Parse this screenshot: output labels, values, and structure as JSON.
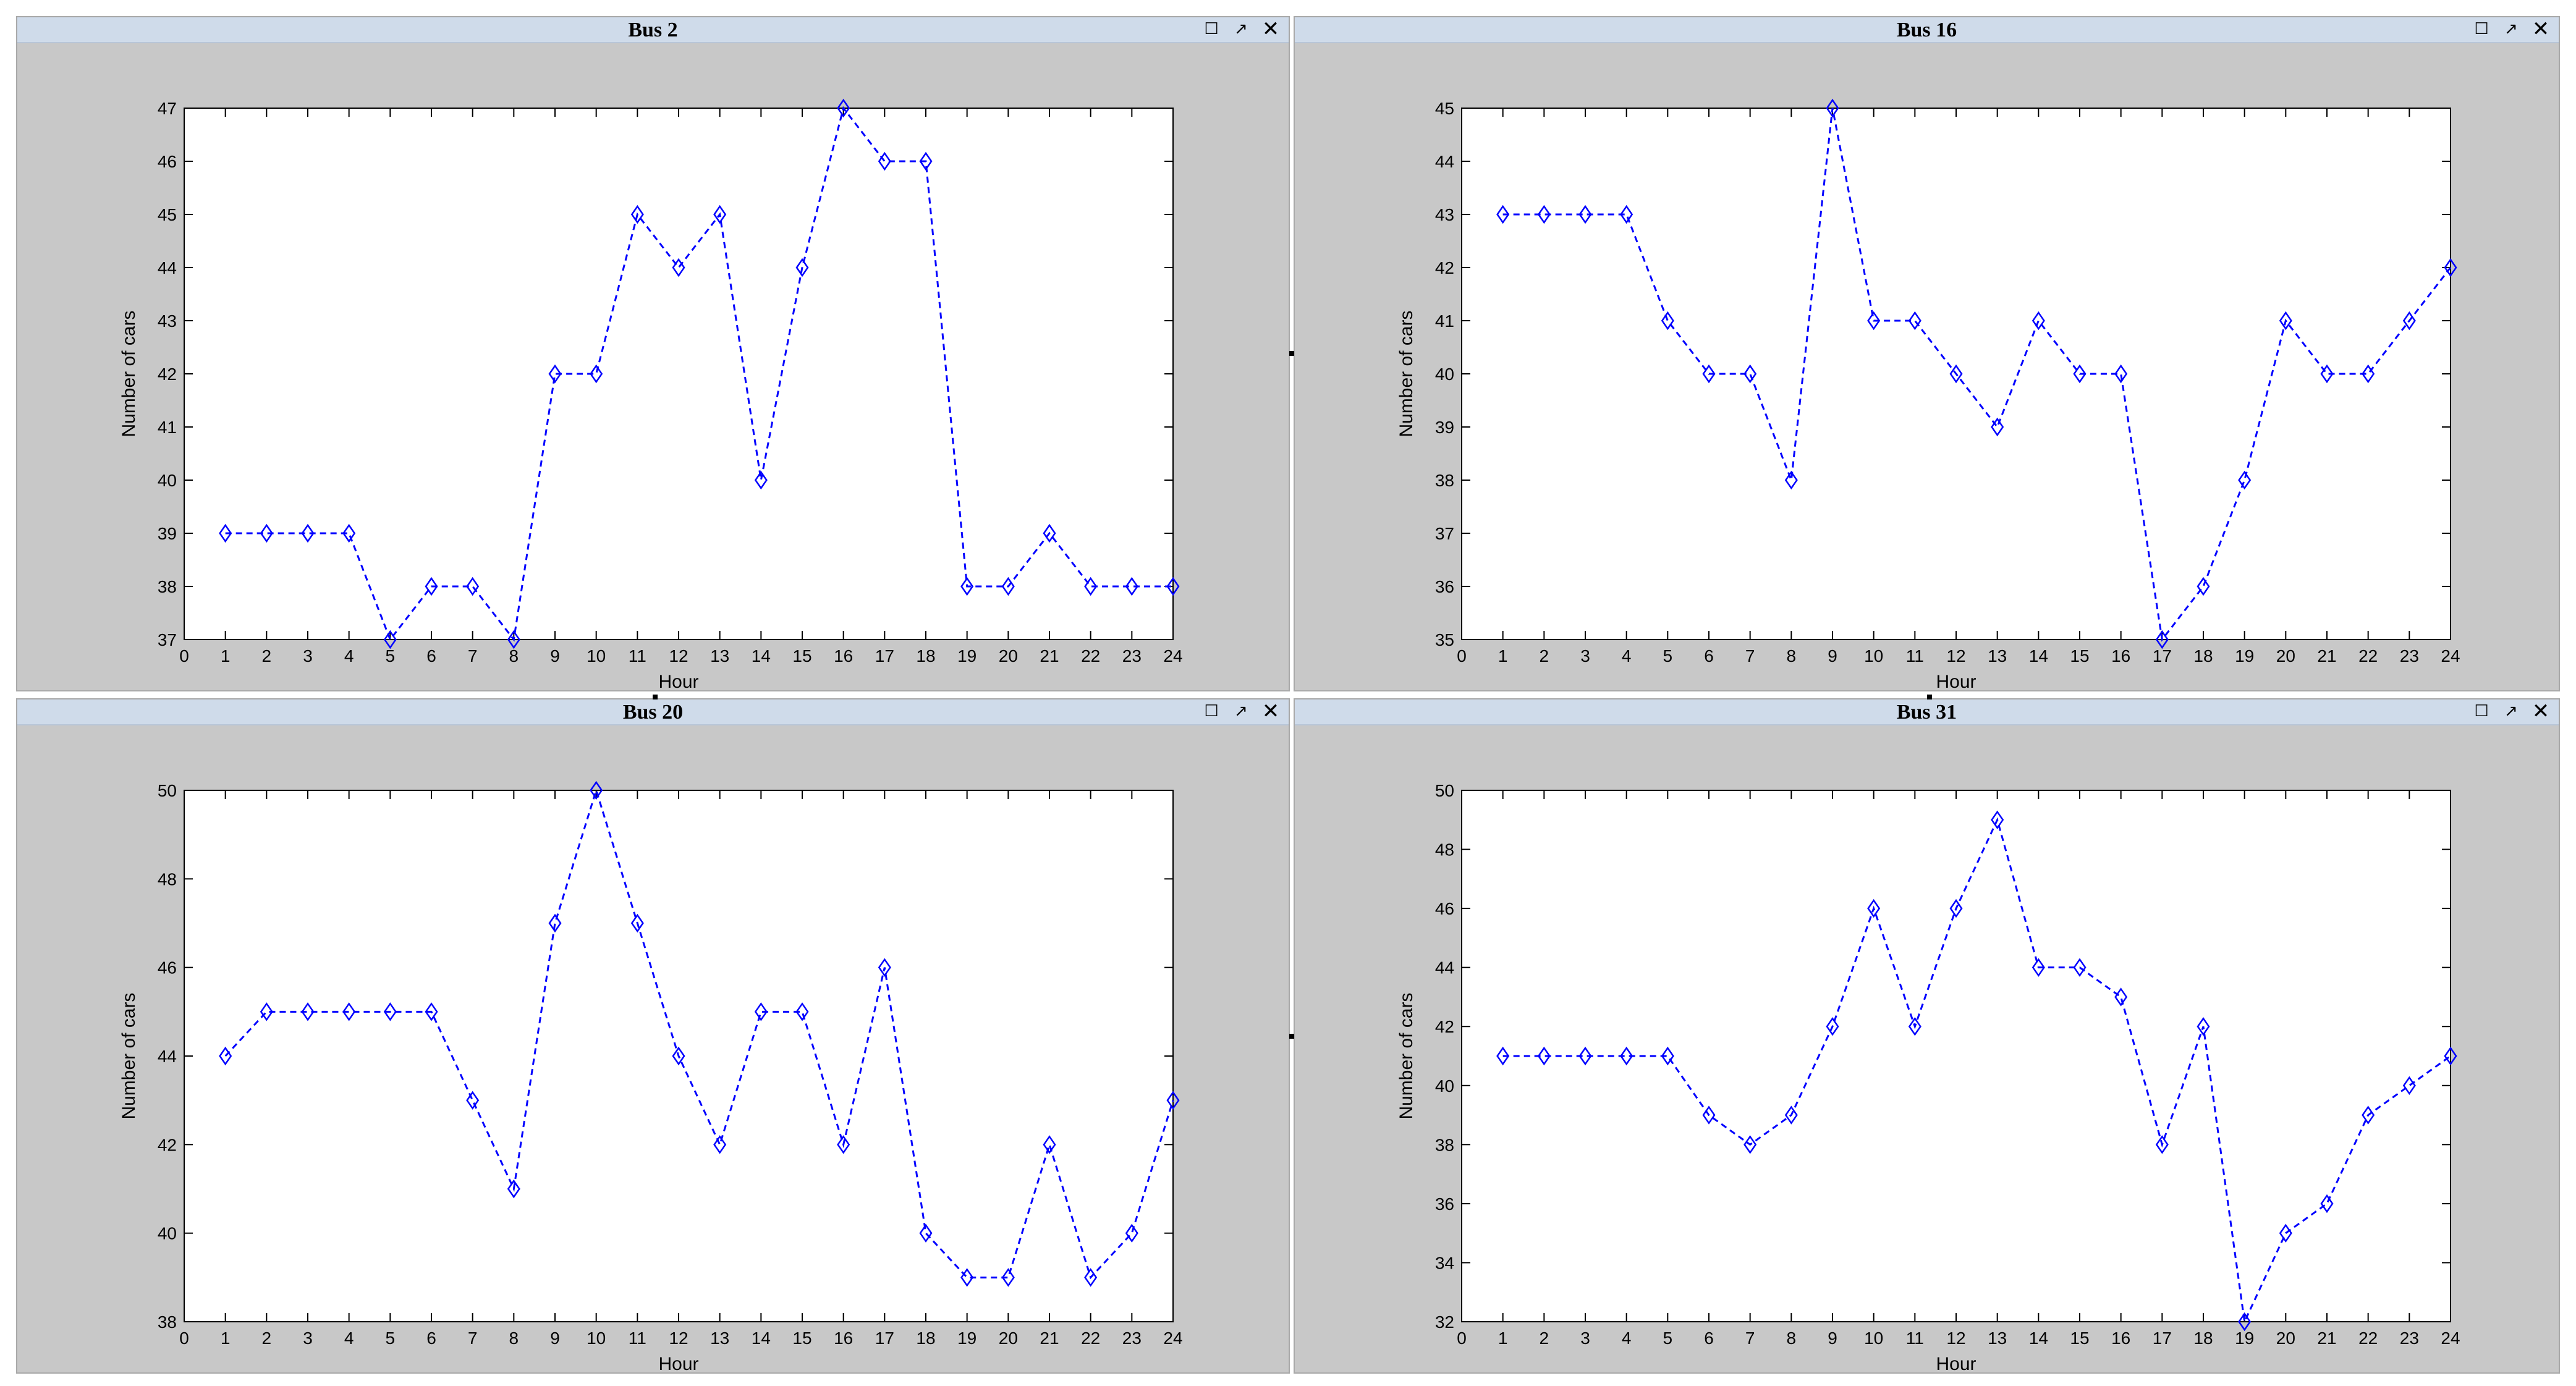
{
  "colors": {
    "series": "#0000ff",
    "frame": "#c8c8c8",
    "titlebar": "#cfdbea"
  },
  "window_controls": [
    {
      "name": "maximize-icon",
      "glyph": "☐"
    },
    {
      "name": "undock-icon",
      "glyph": "↗"
    },
    {
      "name": "close-icon",
      "glyph": "✕"
    }
  ],
  "chart_data": [
    {
      "type": "line",
      "title": "Bus 2",
      "xlabel": "Hour",
      "ylabel": "Number of cars",
      "x": [
        1,
        2,
        3,
        4,
        5,
        6,
        7,
        8,
        9,
        10,
        11,
        12,
        13,
        14,
        15,
        16,
        17,
        18,
        19,
        20,
        21,
        22,
        23,
        24
      ],
      "values": [
        39,
        39,
        39,
        39,
        37,
        38,
        38,
        37,
        42,
        42,
        45,
        44,
        45,
        40,
        44,
        47,
        46,
        46,
        38,
        38,
        39,
        38,
        38,
        38
      ],
      "xlim": [
        0,
        24
      ],
      "ylim": [
        37,
        47
      ],
      "xticks": [
        0,
        1,
        2,
        3,
        4,
        5,
        6,
        7,
        8,
        9,
        10,
        11,
        12,
        13,
        14,
        15,
        16,
        17,
        18,
        19,
        20,
        21,
        22,
        23,
        24
      ],
      "yticks": [
        37,
        38,
        39,
        40,
        41,
        42,
        43,
        44,
        45,
        46,
        47
      ],
      "marker": "diamond",
      "line_style": "dashed",
      "grid": false
    },
    {
      "type": "line",
      "title": "Bus 16",
      "xlabel": "Hour",
      "ylabel": "Number of cars",
      "x": [
        1,
        2,
        3,
        4,
        5,
        6,
        7,
        8,
        9,
        10,
        11,
        12,
        13,
        14,
        15,
        16,
        17,
        18,
        19,
        20,
        21,
        22,
        23,
        24
      ],
      "values": [
        43,
        43,
        43,
        43,
        41,
        40,
        40,
        38,
        45,
        41,
        41,
        40,
        39,
        41,
        40,
        40,
        35,
        36,
        38,
        41,
        40,
        40,
        41,
        42
      ],
      "xlim": [
        0,
        24
      ],
      "ylim": [
        35,
        45
      ],
      "xticks": [
        0,
        1,
        2,
        3,
        4,
        5,
        6,
        7,
        8,
        9,
        10,
        11,
        12,
        13,
        14,
        15,
        16,
        17,
        18,
        19,
        20,
        21,
        22,
        23,
        24
      ],
      "yticks": [
        35,
        36,
        37,
        38,
        39,
        40,
        41,
        42,
        43,
        44,
        45
      ],
      "marker": "diamond",
      "line_style": "dashed",
      "grid": false
    },
    {
      "type": "line",
      "title": "Bus 20",
      "xlabel": "Hour",
      "ylabel": "Number of cars",
      "x": [
        1,
        2,
        3,
        4,
        5,
        6,
        7,
        8,
        9,
        10,
        11,
        12,
        13,
        14,
        15,
        16,
        17,
        18,
        19,
        20,
        21,
        22,
        23,
        24
      ],
      "values": [
        44,
        45,
        45,
        45,
        45,
        45,
        43,
        41,
        47,
        50,
        47,
        44,
        42,
        45,
        45,
        42,
        46,
        40,
        39,
        39,
        42,
        39,
        40,
        43
      ],
      "xlim": [
        0,
        24
      ],
      "ylim": [
        38,
        50
      ],
      "xticks": [
        0,
        1,
        2,
        3,
        4,
        5,
        6,
        7,
        8,
        9,
        10,
        11,
        12,
        13,
        14,
        15,
        16,
        17,
        18,
        19,
        20,
        21,
        22,
        23,
        24
      ],
      "yticks": [
        38,
        40,
        42,
        44,
        46,
        48,
        50
      ],
      "marker": "diamond",
      "line_style": "dashed",
      "grid": false
    },
    {
      "type": "line",
      "title": "Bus 31",
      "xlabel": "Hour",
      "ylabel": "Number of cars",
      "x": [
        1,
        2,
        3,
        4,
        5,
        6,
        7,
        8,
        9,
        10,
        11,
        12,
        13,
        14,
        15,
        16,
        17,
        18,
        19,
        20,
        21,
        22,
        23,
        24
      ],
      "values": [
        41,
        41,
        41,
        41,
        41,
        39,
        38,
        39,
        42,
        46,
        42,
        46,
        49,
        44,
        44,
        43,
        38,
        42,
        32,
        35,
        36,
        39,
        40,
        41
      ],
      "xlim": [
        0,
        24
      ],
      "ylim": [
        32,
        50
      ],
      "xticks": [
        0,
        1,
        2,
        3,
        4,
        5,
        6,
        7,
        8,
        9,
        10,
        11,
        12,
        13,
        14,
        15,
        16,
        17,
        18,
        19,
        20,
        21,
        22,
        23,
        24
      ],
      "yticks": [
        32,
        34,
        36,
        38,
        40,
        42,
        44,
        46,
        48,
        50
      ],
      "marker": "diamond",
      "line_style": "dashed",
      "grid": false
    }
  ]
}
